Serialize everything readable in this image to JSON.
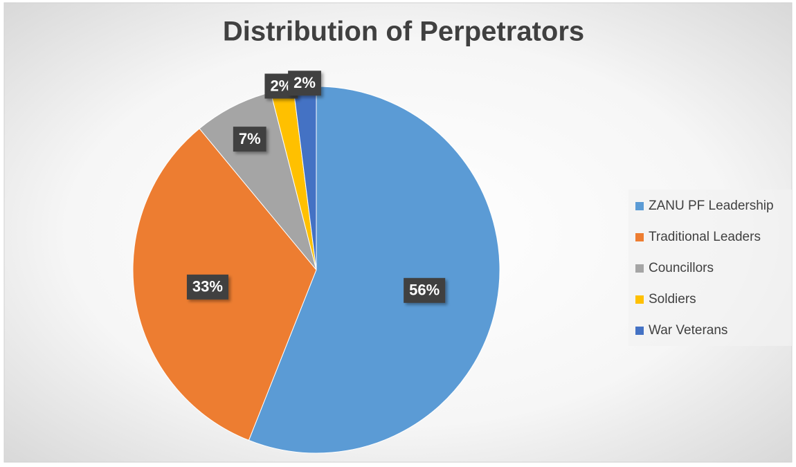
{
  "chart_data": {
    "type": "pie",
    "title": "Distribution of Perpetrators",
    "categories": [
      "ZANU PF Leadership",
      "Traditional Leaders",
      "Councillors",
      "Soldiers",
      "War Veterans"
    ],
    "values": [
      56,
      33,
      7,
      2,
      2
    ],
    "value_labels": [
      "56%",
      "33%",
      "7%",
      "2%",
      "2%"
    ],
    "colors": [
      "#5b9bd5",
      "#ed7d31",
      "#a5a5a5",
      "#ffc000",
      "#4472c4"
    ],
    "legend": "right"
  }
}
